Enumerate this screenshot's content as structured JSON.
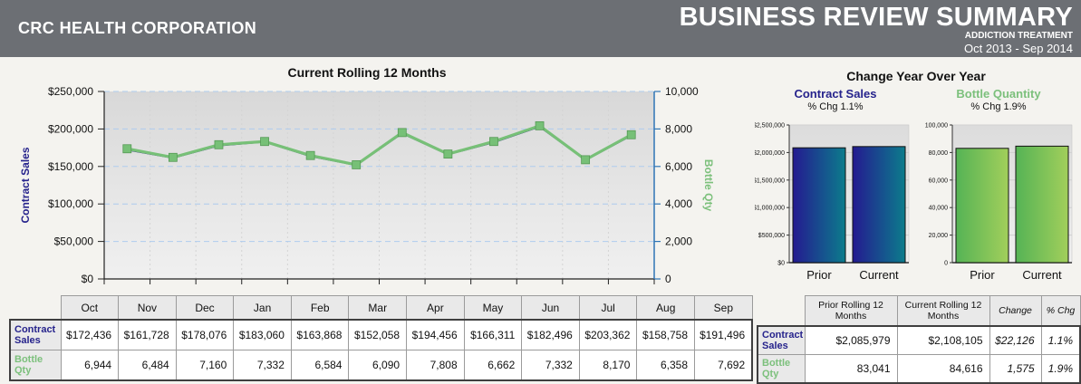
{
  "header": {
    "company": "CRC HEALTH CORPORATION",
    "title": "BUSINESS REVIEW SUMMARY",
    "subtitle": "ADDICTION TREATMENT",
    "period": "Oct 2013 - Sep 2014"
  },
  "yoy_title": "Change Year Over Year",
  "colors": {
    "navy": "#26238C",
    "green": "#7CC07C",
    "line_navy": "#1B1B78",
    "line_green": "#77C077",
    "marker_edge": "#559955",
    "right_axis_blue": "#2E75B6",
    "gridline_blue": "#AECCEE",
    "bar_blue_gradient": [
      "#241A90",
      "#0C7C8C"
    ],
    "bar_green_gradient": [
      "#55B355",
      "#A2CF5B"
    ],
    "header_gray": "#6C6F74"
  },
  "chart_data": [
    {
      "type": "line",
      "title": "Current Rolling 12 Months",
      "categories": [
        "Oct",
        "Nov",
        "Dec",
        "Jan",
        "Feb",
        "Mar",
        "Apr",
        "May",
        "Jun",
        "Jul",
        "Aug",
        "Sep"
      ],
      "series": [
        {
          "name": "Contract Sales",
          "axis": "left",
          "values": [
            172436,
            161728,
            178076,
            183060,
            163868,
            152058,
            194456,
            166311,
            182496,
            203362,
            158758,
            191496
          ]
        },
        {
          "name": "Bottle Qty",
          "axis": "right",
          "values": [
            6944,
            6484,
            7160,
            7332,
            6584,
            6090,
            7808,
            6662,
            7332,
            8170,
            6358,
            7692
          ]
        }
      ],
      "left_axis": {
        "label": "Contract Sales",
        "min": 0,
        "max": 250000,
        "tick_labels": [
          "$0",
          "$50,000",
          "$100,000",
          "$150,000",
          "$200,000",
          "$250,000"
        ]
      },
      "right_axis": {
        "label": "Bottle Qty",
        "min": 0,
        "max": 10000,
        "tick_labels": [
          "0",
          "2,000",
          "4,000",
          "6,000",
          "8,000",
          "10,000"
        ]
      },
      "legend": "none",
      "grid": "horizontal-dashed"
    },
    {
      "type": "bar",
      "title": "Contract Sales",
      "subtitle": "% Chg 1.1%",
      "categories": [
        "Prior",
        "Current"
      ],
      "values": [
        2085979,
        2108105
      ],
      "ylim": [
        0,
        2500000
      ],
      "tick_labels": [
        "$0",
        "$500,000",
        "$1,000,000",
        "$1,500,000",
        "$2,000,000",
        "$2,500,000"
      ]
    },
    {
      "type": "bar",
      "title": "Bottle Quantity",
      "subtitle": "% Chg 1.9%",
      "categories": [
        "Prior",
        "Current"
      ],
      "values": [
        83041,
        84616
      ],
      "ylim": [
        0,
        100000
      ],
      "tick_labels": [
        "0",
        "20,000",
        "40,000",
        "60,000",
        "80,000",
        "100,000"
      ]
    }
  ],
  "monthly_table": {
    "columns": [
      "Oct",
      "Nov",
      "Dec",
      "Jan",
      "Feb",
      "Mar",
      "Apr",
      "May",
      "Jun",
      "Jul",
      "Aug",
      "Sep"
    ],
    "rows": [
      {
        "label": "Contract Sales",
        "color": "navy",
        "values": [
          "$172,436",
          "$161,728",
          "$178,076",
          "$183,060",
          "$163,868",
          "$152,058",
          "$194,456",
          "$166,311",
          "$182,496",
          "$203,362",
          "$158,758",
          "$191,496"
        ]
      },
      {
        "label": "Bottle Qty",
        "color": "green",
        "values": [
          "6,944",
          "6,484",
          "7,160",
          "7,332",
          "6,584",
          "6,090",
          "7,808",
          "6,662",
          "7,332",
          "8,170",
          "6,358",
          "7,692"
        ]
      }
    ]
  },
  "summary_table": {
    "columns": [
      "Prior Rolling 12 Months",
      "Current Rolling 12 Months",
      "Change",
      "% Chg"
    ],
    "rows": [
      {
        "label": "Contract Sales",
        "color": "navy",
        "values": [
          "$2,085,979",
          "$2,108,105",
          "$22,126",
          "1.1%"
        ]
      },
      {
        "label": "Bottle Qty",
        "color": "green",
        "values": [
          "83,041",
          "84,616",
          "1,575",
          "1.9%"
        ]
      }
    ]
  }
}
